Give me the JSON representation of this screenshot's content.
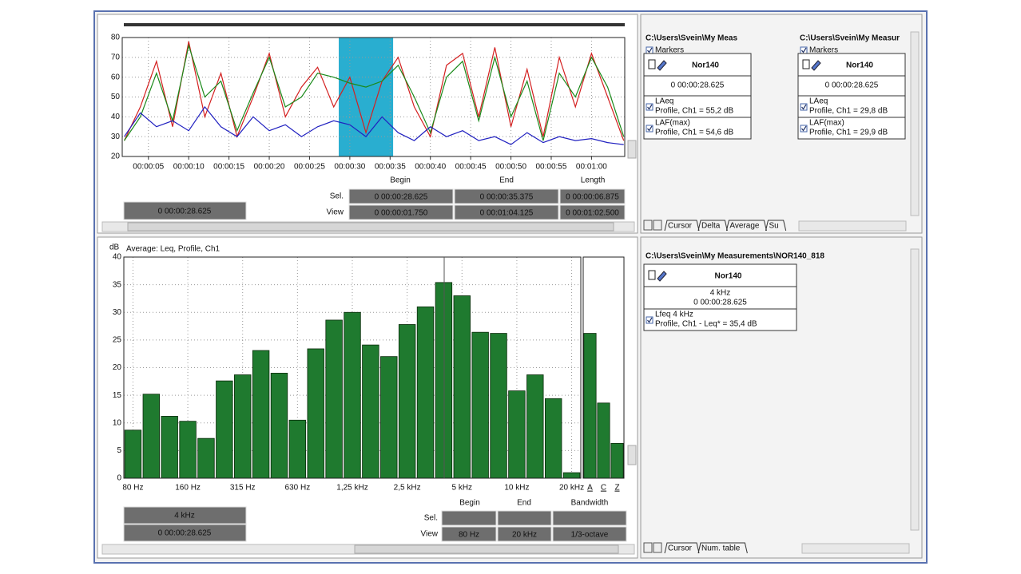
{
  "chart_data": [
    {
      "type": "line",
      "x": [
        2,
        4,
        6,
        8,
        10,
        12,
        14,
        16,
        18,
        20,
        22,
        24,
        26,
        28,
        30,
        32,
        34,
        36,
        38,
        40,
        42,
        44,
        46,
        48,
        50,
        52,
        54,
        56,
        58,
        60,
        62,
        64
      ],
      "series": [
        {
          "color": "#d42020",
          "values": [
            28,
            45,
            68,
            35,
            78,
            40,
            62,
            30,
            50,
            72,
            40,
            55,
            65,
            45,
            60,
            32,
            58,
            70,
            45,
            30,
            66,
            72,
            40,
            75,
            35,
            64,
            30,
            70,
            45,
            72,
            50,
            28
          ]
        },
        {
          "color": "#1a8a1a",
          "values": [
            28,
            40,
            62,
            38,
            76,
            50,
            58,
            33,
            52,
            70,
            45,
            50,
            62,
            60,
            57,
            55,
            58,
            66,
            50,
            32,
            60,
            68,
            38,
            70,
            40,
            58,
            28,
            62,
            50,
            70,
            55,
            30
          ]
        },
        {
          "color": "#2020c0",
          "values": [
            30,
            42,
            35,
            38,
            33,
            45,
            35,
            30,
            40,
            33,
            36,
            30,
            35,
            38,
            36,
            30,
            40,
            32,
            28,
            35,
            30,
            33,
            28,
            30,
            26,
            32,
            27,
            30,
            28,
            29,
            27,
            26
          ]
        }
      ],
      "xlim": [
        1.75,
        64.125
      ],
      "xticks": [
        {
          "value": 5,
          "label": "00:00:05"
        },
        {
          "value": 10,
          "label": "00:00:10"
        },
        {
          "value": 15,
          "label": "00:00:15"
        },
        {
          "value": 20,
          "label": "00:00:20"
        },
        {
          "value": 25,
          "label": "00:00:25"
        },
        {
          "value": 30,
          "label": "00:00:30"
        },
        {
          "value": 35,
          "label": "00:00:35"
        },
        {
          "value": 40,
          "label": "00:00:40"
        },
        {
          "value": 45,
          "label": "00:00:45"
        },
        {
          "value": 50,
          "label": "00:00:50"
        },
        {
          "value": 55,
          "label": "00:00:55"
        },
        {
          "value": 60,
          "label": "00:01:00"
        }
      ],
      "ylim": [
        20,
        80
      ],
      "yticks": [
        20,
        30,
        40,
        50,
        60,
        70,
        80
      ],
      "grid": true,
      "selection": [
        28.625,
        35.375
      ],
      "selection_color": "#29aed0"
    },
    {
      "type": "bar",
      "title": "Average: Leq, Profile, Ch1",
      "y_label": "dB",
      "categories": [
        "80 Hz",
        null,
        null,
        "160 Hz",
        null,
        null,
        "315 Hz",
        null,
        null,
        "630 Hz",
        null,
        null,
        "1,25 kHz",
        null,
        null,
        "2,5 kHz",
        null,
        null,
        "5 kHz",
        null,
        null,
        "10 kHz",
        null,
        null,
        "20 kHz"
      ],
      "values": [
        8.7,
        15.2,
        11.2,
        10.3,
        7.2,
        17.6,
        18.7,
        23.1,
        19.0,
        10.5,
        23.4,
        28.6,
        30.0,
        24.1,
        22.0,
        27.8,
        31.0,
        35.4,
        33.0,
        26.4,
        26.2,
        15.8,
        18.7,
        14.4,
        1.0
      ],
      "color": "#1f7a2f",
      "ylim": [
        0,
        40
      ],
      "yticks": [
        0,
        5,
        10,
        15,
        20,
        25,
        30,
        35,
        40
      ],
      "grid": true
    },
    {
      "type": "bar",
      "categories": [
        "A",
        "C",
        "Z"
      ],
      "values": [
        26.2,
        13.6,
        6.3
      ],
      "color": "#1f7a2f",
      "ylim": [
        0,
        40
      ]
    }
  ],
  "panels": {
    "time_table": {
      "headers": [
        "Begin",
        "End",
        "Length"
      ],
      "rows": [
        {
          "label": "Sel.",
          "cells": [
            "0 00:00:28.625",
            "0 00:00:35.375",
            "0 00:00:06.875"
          ]
        },
        {
          "label": "View",
          "cells": [
            "0 00:00:01.750",
            "0 00:01:04.125",
            "0 00:01:02.500"
          ]
        }
      ]
    },
    "time_cursor": "0 00:00:28.625",
    "spectrum_table": {
      "headers": [
        "Begin",
        "End",
        "Bandwidth"
      ],
      "rows": [
        {
          "label": "Sel.",
          "cells": []
        },
        {
          "label": "View",
          "cells": [
            "80 Hz",
            "20 kHz",
            "1/3-octave"
          ]
        }
      ]
    },
    "spectrum_cursor": [
      "4 kHz",
      "0 00:00:28.625"
    ],
    "cards_top": [
      {
        "path": "C:\\Users\\Svein\\My Meas",
        "markers": "Markers",
        "device": "Nor140",
        "time": "0 00:00:28.625",
        "rows": [
          {
            "name": "LAeq",
            "detail": "Profile, Ch1 = 55,2 dB",
            "color": "#d42020"
          },
          {
            "name": "LAF(max)",
            "detail": "Profile, Ch1 = 54,6 dB",
            "color": "#1a8a1a"
          }
        ]
      },
      {
        "path": "C:\\Users\\Svein\\My Measur",
        "markers": "Markers",
        "device": "Nor140",
        "time": "0 00:00:28.625",
        "rows": [
          {
            "name": "LAeq",
            "detail": "Profile, Ch1 = 29,8 dB",
            "color": "#2020c0"
          },
          {
            "name": "LAF(max)",
            "detail": "Profile, Ch1 = 29,9 dB",
            "color": "#c08a10"
          }
        ]
      }
    ],
    "tabs_top": [
      "Cursor",
      "Delta",
      "Average",
      "Su"
    ],
    "card_bottom": {
      "path": "C:\\Users\\Svein\\My Measurements\\NOR140_818",
      "device": "Nor140",
      "freq": "4 kHz",
      "time": "0 00:00:28.625",
      "rows": [
        {
          "name": "Lfeq 4 kHz",
          "detail": "Profile, Ch1 - Leq* = 35,4 dB",
          "color": "#1a8a1a"
        }
      ]
    },
    "tabs_bottom": [
      "Cursor",
      "Num. table"
    ]
  }
}
